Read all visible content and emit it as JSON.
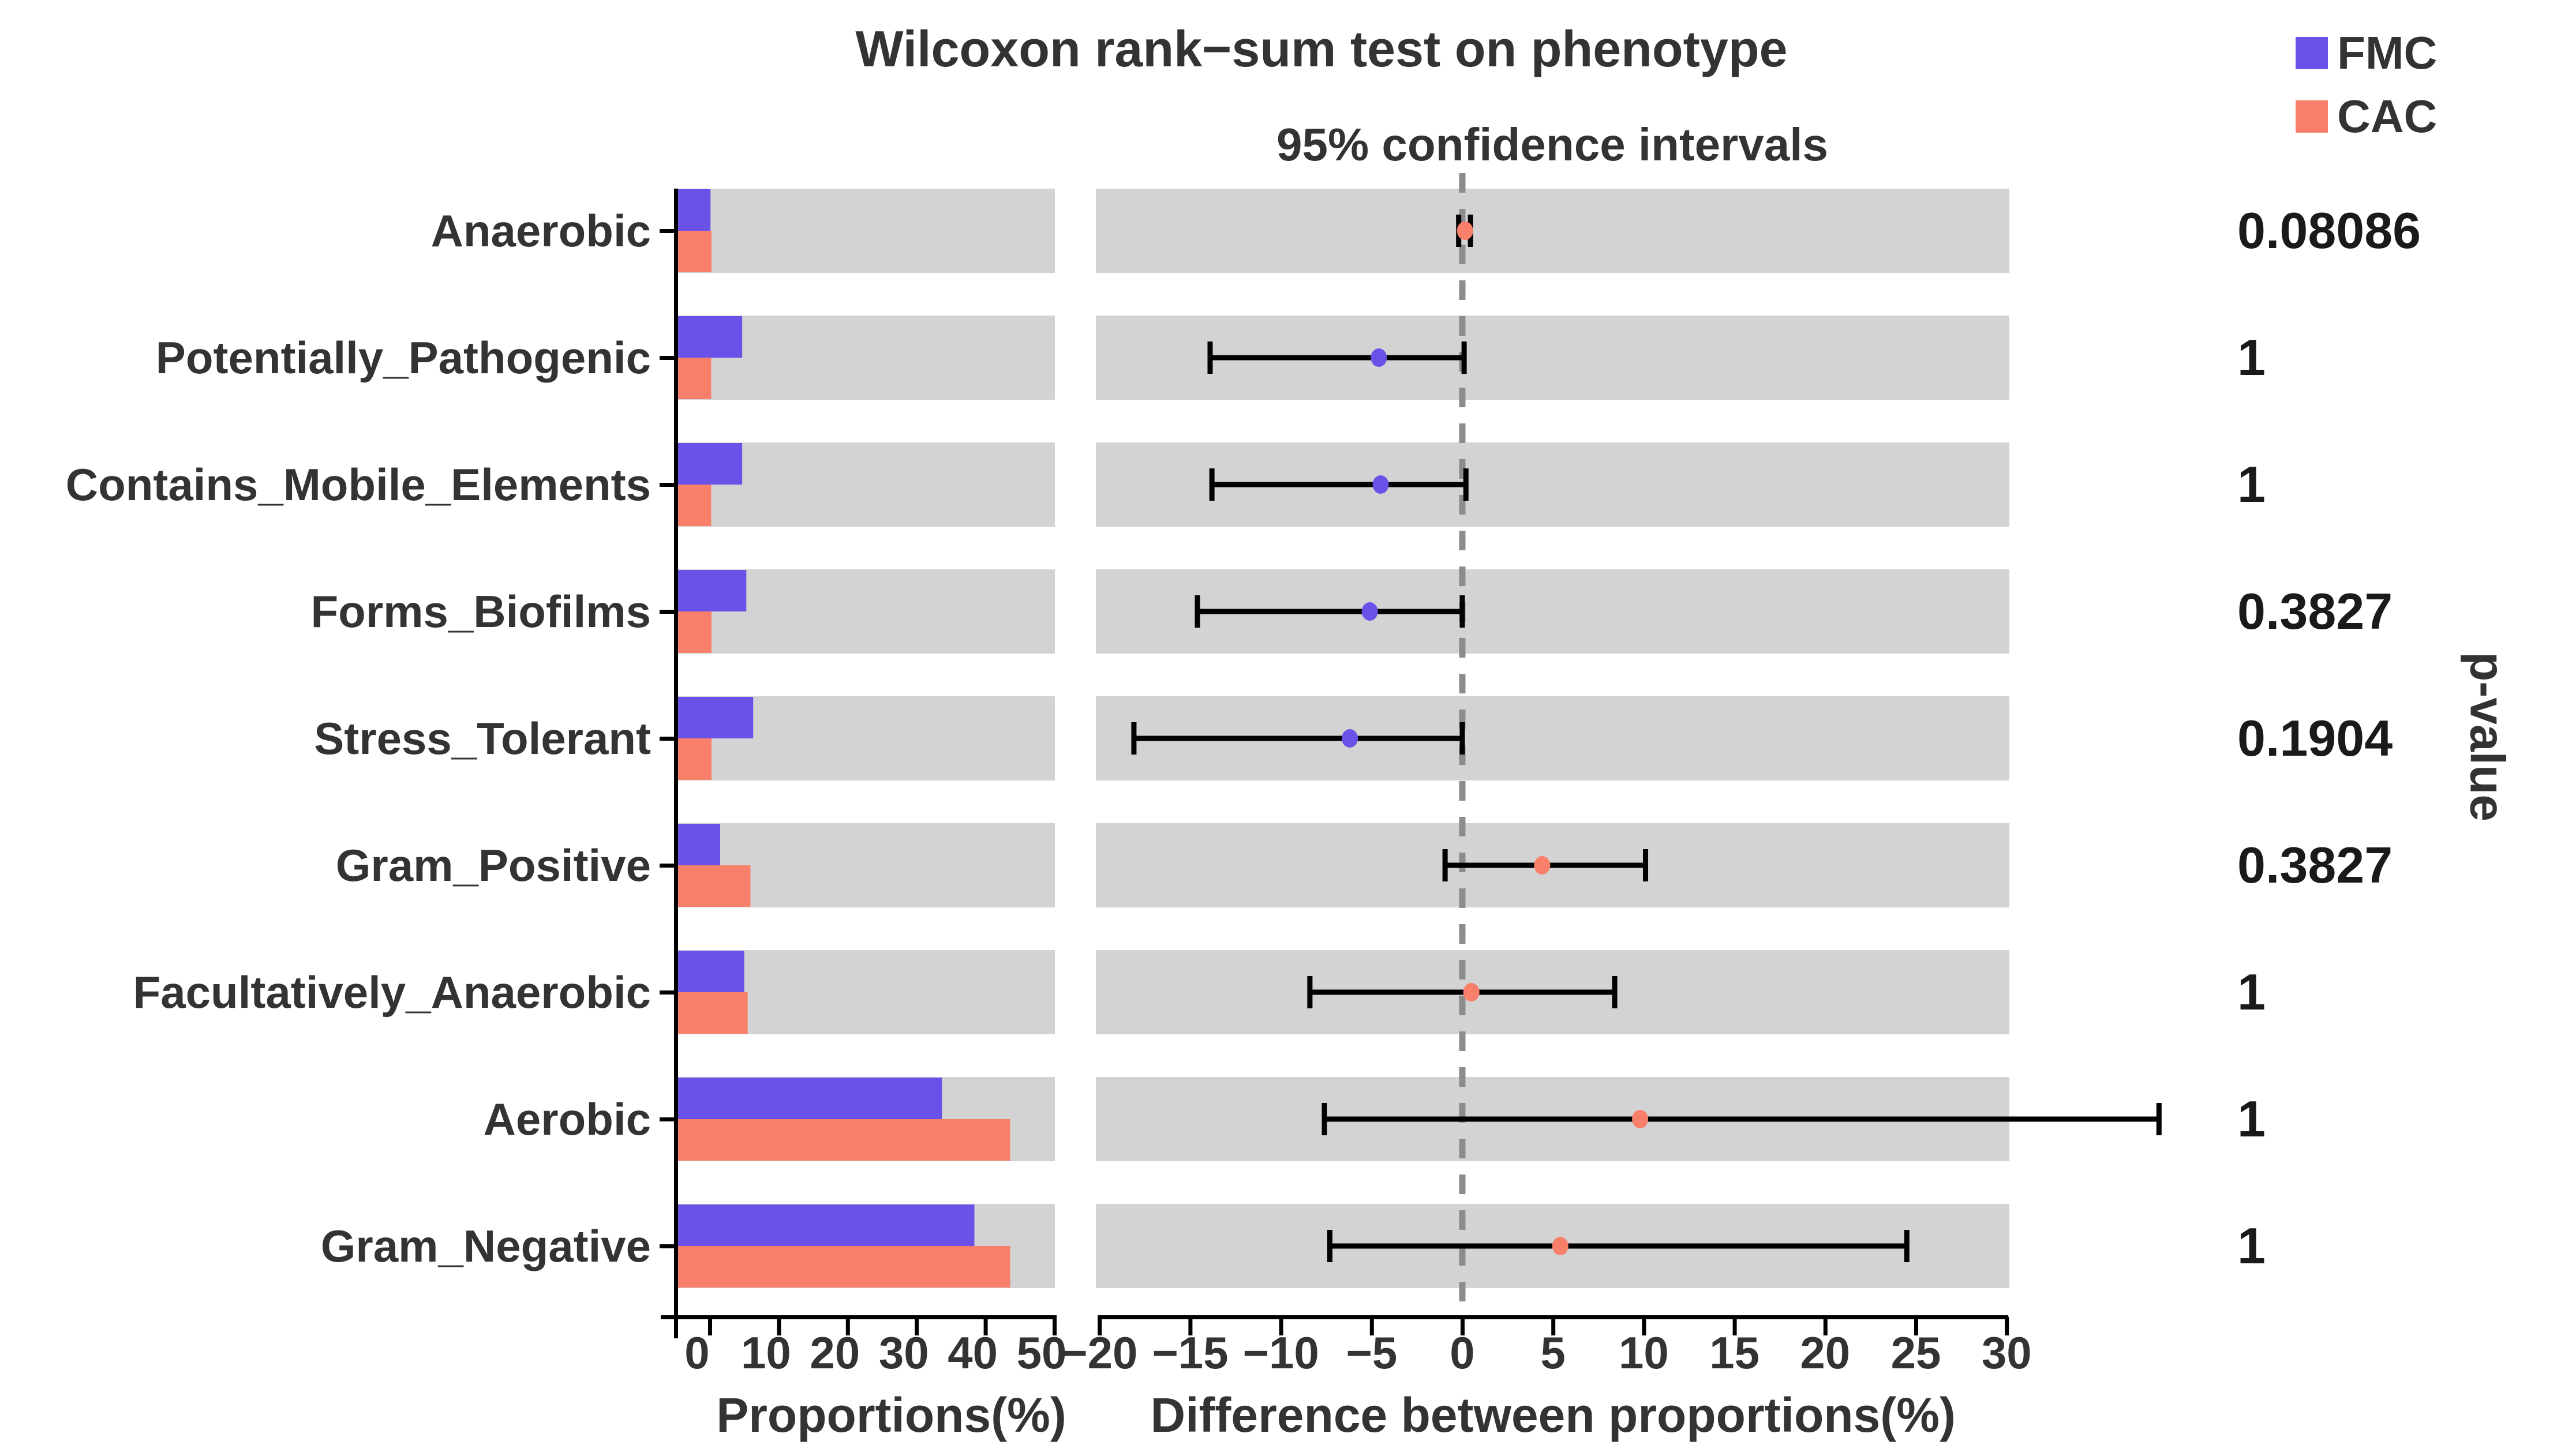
{
  "figure": {
    "title": "Wilcoxon rank−sum test on phenotype",
    "subtitle": "95% confidence intervals",
    "pvalue_axis_label": "p-value",
    "legend": [
      {
        "label": "FMC",
        "color": "#6A52E8"
      },
      {
        "label": "CAC",
        "color": "#F8806B"
      }
    ]
  },
  "chart_data": {
    "type": "bar",
    "subtype": "extended-error-bar (paired proportions bar chart + 95% CI dot-whisker + p-value column)",
    "categories": [
      "Anaerobic",
      "Potentially_Pathogenic",
      "Contains_Mobile_Elements",
      "Forms_Biofilms",
      "Stress_Tolerant",
      "Gram_Positive",
      "Facultatively_Anaerobic",
      "Aerobic",
      "Gram_Negative"
    ],
    "series": [
      {
        "name": "FMC",
        "color": "#6A52E8",
        "values": [
          0.1,
          4.7,
          4.7,
          5.3,
          6.3,
          1.5,
          5.0,
          33.7,
          38.4
        ]
      },
      {
        "name": "CAC",
        "color": "#F8806B",
        "values": [
          0.25,
          0.2,
          0.2,
          0.25,
          0.25,
          5.9,
          5.5,
          43.6,
          43.6
        ]
      }
    ],
    "intervals": [
      {
        "point": 0.15,
        "lo": -0.2,
        "hi": 0.45,
        "group": "CAC"
      },
      {
        "point": -4.6,
        "lo": -13.9,
        "hi": 0.1,
        "group": "FMC"
      },
      {
        "point": -4.5,
        "lo": -13.8,
        "hi": 0.2,
        "group": "FMC"
      },
      {
        "point": -5.1,
        "lo": -14.6,
        "hi": 0.0,
        "group": "FMC"
      },
      {
        "point": -6.2,
        "lo": -18.1,
        "hi": 0.0,
        "group": "FMC"
      },
      {
        "point": 4.4,
        "lo": -0.95,
        "hi": 10.1,
        "group": "CAC"
      },
      {
        "point": 0.5,
        "lo": -8.4,
        "hi": 8.4,
        "group": "CAC"
      },
      {
        "point": 9.8,
        "lo": -7.6,
        "hi": 38.4,
        "group": "CAC"
      },
      {
        "point": 5.4,
        "lo": -7.3,
        "hi": 24.5,
        "group": "CAC"
      }
    ],
    "p_values": [
      "0.08086",
      "1",
      "1",
      "0.3827",
      "0.1904",
      "0.3827",
      "1",
      "1",
      "1"
    ],
    "left_axis": {
      "label": "Proportions(%)",
      "ticks": [
        0,
        10,
        20,
        30,
        40,
        50
      ],
      "range": [
        0,
        50
      ]
    },
    "right_axis": {
      "label": "Difference between proportions(%)",
      "ticks": [
        -20,
        -15,
        -10,
        -5,
        0,
        5,
        10,
        15,
        20,
        25,
        30
      ],
      "range": [
        -20,
        30
      ],
      "zero_reference_line": 0
    },
    "legend_position": "top-right",
    "grid": "off",
    "band_color": "#D3D3D3",
    "dashed_line_color": "#8C8C8C",
    "axis_color": "#000000",
    "text_color": "#333333"
  }
}
